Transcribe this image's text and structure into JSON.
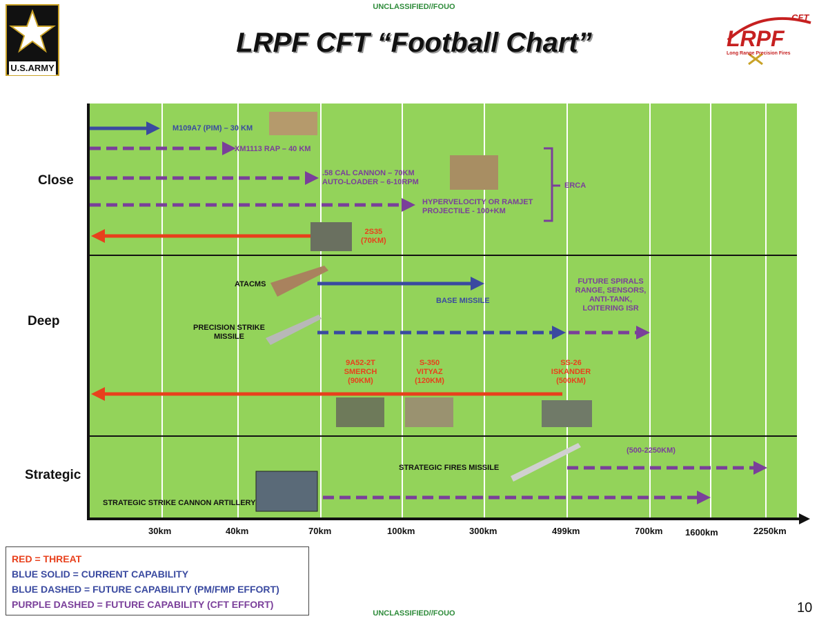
{
  "classification": "UNCLASSIFIED//FOUO",
  "title": "LRPF CFT “Football Chart”",
  "logo_left": "U.S.ARMY",
  "logo_right": {
    "text": "LRPF",
    "super": "CFT",
    "tagline": "Long Range Precision Fires"
  },
  "rows": [
    "Close",
    "Deep",
    "Strategic"
  ],
  "ticks": [
    "30km",
    "40km",
    "70km",
    "100km",
    "300km",
    "499km",
    "700km",
    "1600km",
    "2250km"
  ],
  "labels": {
    "m109": "M109A7 (PIM) – 30 KM",
    "xm1113": "XM1113 RAP – 40 KM",
    "cannon1": ".58 CAL CANNON – 70KM",
    "cannon2": "AUTO-LOADER – 6-10RPM",
    "hyper1": "HYPERVELOCITY OR RAMJET",
    "hyper2": "PROJECTILE - 100+KM",
    "erca": "ERCA",
    "s2s35a": "2S35",
    "s2s35b": "(70KM)",
    "atacms": "ATACMS",
    "base": "BASE MISSILE",
    "prsm1": "PRECISION STRIKE",
    "prsm2": "MISSILE",
    "fut1": "FUTURE SPIRALS",
    "fut2": "RANGE, SENSORS,",
    "fut3": "ANTI-TANK,",
    "fut4": "LOITERING ISR",
    "sm1": "9A52-2T",
    "sm2": "SMERCH",
    "sm3": "(90KM)",
    "vi1": "S-350",
    "vi2": "VITYAZ",
    "vi3": "(120KM)",
    "is1": "SS-26",
    "is2": "ISKANDER",
    "is3": "(500KM)",
    "sfm": "STRATEGIC FIRES MISSILE",
    "range": "(500-2250KM)",
    "sca": "STRATEGIC STRIKE CANNON ARTILLERY"
  },
  "legend": [
    "RED = THREAT",
    "BLUE SOLID = CURRENT CAPABILITY",
    "BLUE DASHED = FUTURE CAPABILITY (PM/FMP EFFORT)",
    "PURPLE DASHED = FUTURE CAPABILITY (CFT EFFORT)"
  ],
  "page_number": "10",
  "colors": {
    "field": "#93d35a",
    "threat": "#e8401c",
    "current": "#3a4aa0",
    "cft": "#7a3f9a"
  }
}
